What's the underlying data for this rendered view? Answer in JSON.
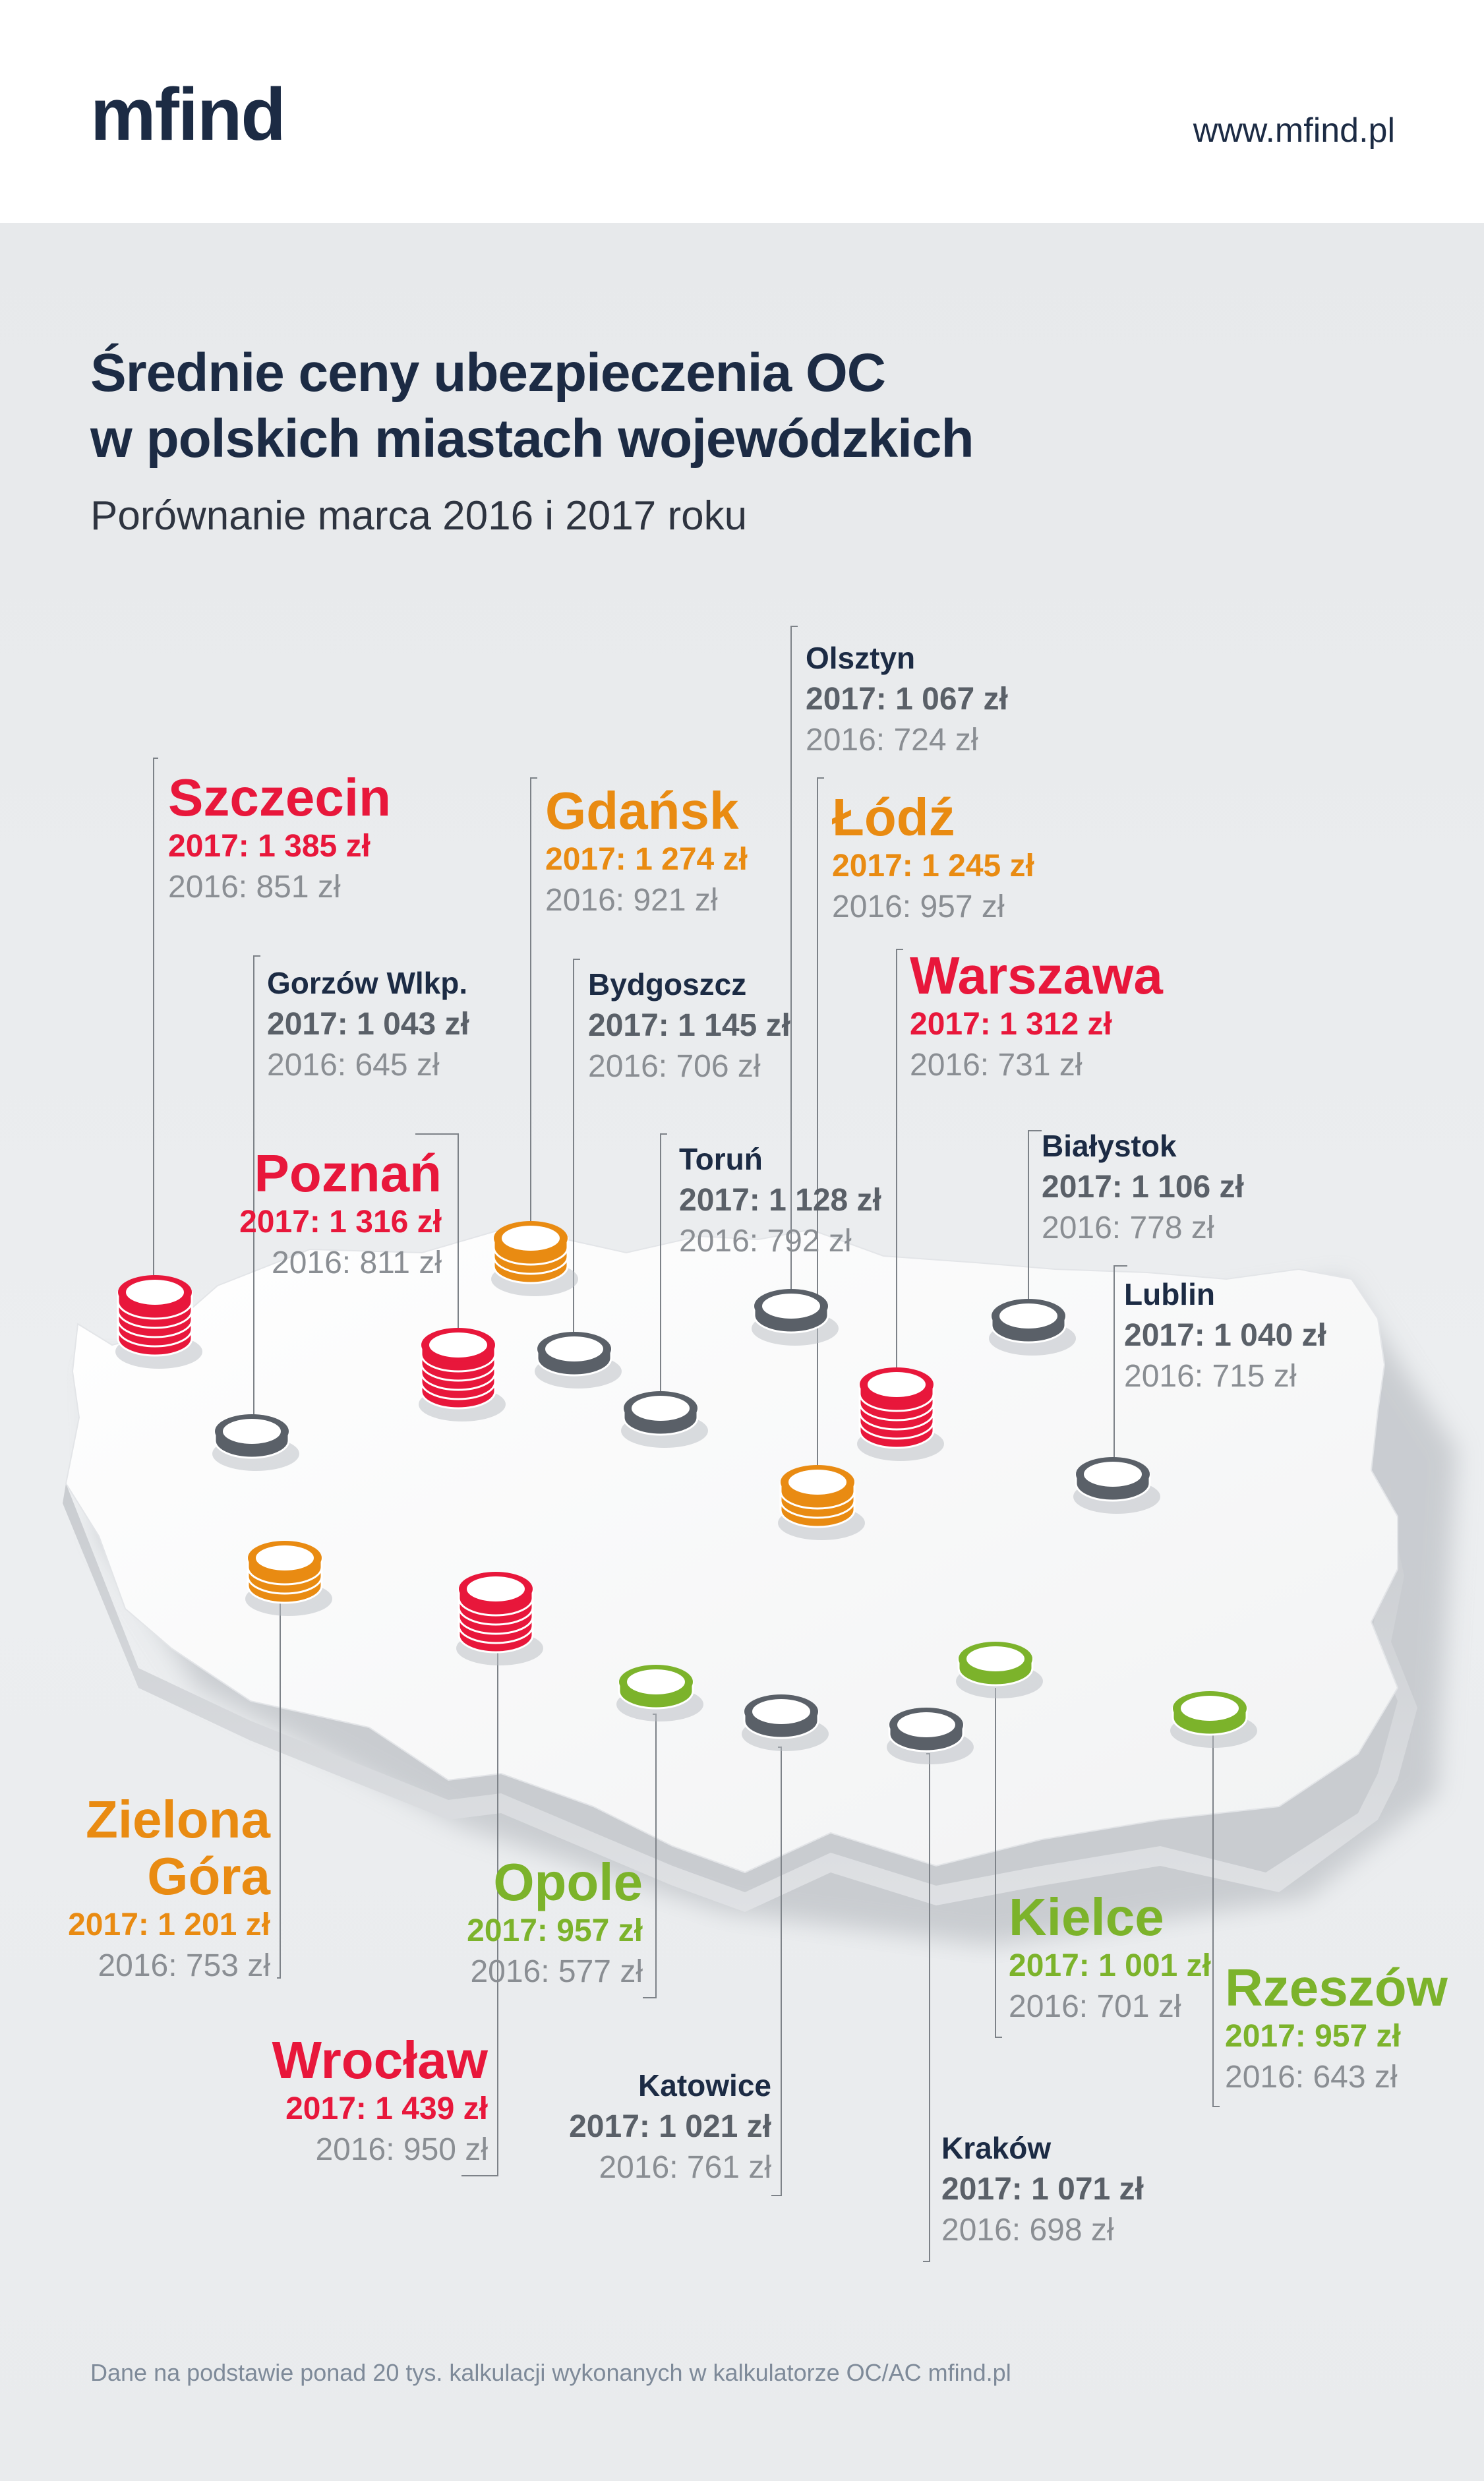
{
  "header": {
    "logo": "mfind",
    "url": "www.mfind.pl"
  },
  "title_line1": "Średnie ceny ubezpieczenia OC",
  "title_line2": "w polskich miastach wojewódzkich",
  "subtitle": "Porównanie marca 2016 i 2017 roku",
  "footer": "Dane na podstawie ponad 20 tys. kalkulacji wykonanych w kalkulatorze OC/AC mfind.pl",
  "colors": {
    "red": "#e8173b",
    "orange": "#e98b12",
    "green": "#7cb32b",
    "gray": "#5a6068",
    "navy": "#1c2b44"
  },
  "cities": [
    {
      "name": "Szczecin",
      "v2017": "2017: 1 385 zł",
      "v2016": "2016: 851 zł",
      "tier": "red"
    },
    {
      "name": "Gorzów Wlkp.",
      "v2017": "2017: 1 043 zł",
      "v2016": "2016: 645 zł",
      "tier": "gray"
    },
    {
      "name": "Gdańsk",
      "v2017": "2017: 1 274 zł",
      "v2016": "2016: 921 zł",
      "tier": "orange"
    },
    {
      "name": "Bydgoszcz",
      "v2017": "2017: 1 145 zł",
      "v2016": "2016: 706 zł",
      "tier": "gray"
    },
    {
      "name": "Olsztyn",
      "v2017": "2017: 1 067 zł",
      "v2016": "2016: 724 zł",
      "tier": "gray"
    },
    {
      "name": "Łódź",
      "v2017": "2017: 1 245 zł",
      "v2016": "2016: 957 zł",
      "tier": "orange"
    },
    {
      "name": "Warszawa",
      "v2017": "2017: 1 312 zł",
      "v2016": "2016: 731 zł",
      "tier": "red"
    },
    {
      "name": "Poznań",
      "v2017": "2017: 1 316 zł",
      "v2016": "2016: 811 zł",
      "tier": "red"
    },
    {
      "name": "Toruń",
      "v2017": "2017: 1 128 zł",
      "v2016": "2016: 792 zł",
      "tier": "gray"
    },
    {
      "name": "Białystok",
      "v2017": "2017: 1 106 zł",
      "v2016": "2016: 778 zł",
      "tier": "gray"
    },
    {
      "name": "Lublin",
      "v2017": "2017: 1 040 zł",
      "v2016": "2016: 715 zł",
      "tier": "gray"
    },
    {
      "name_line1": "Zielona",
      "name_line2": "Góra",
      "v2017": "2017: 1 201 zł",
      "v2016": "2016: 753 zł",
      "tier": "orange"
    },
    {
      "name": "Opole",
      "v2017": "2017: 957 zł",
      "v2016": "2016: 577 zł",
      "tier": "green"
    },
    {
      "name": "Wrocław",
      "v2017": "2017: 1 439 zł",
      "v2016": "2016: 950 zł",
      "tier": "red"
    },
    {
      "name": "Katowice",
      "v2017": "2017: 1 021 zł",
      "v2016": "2016: 761 zł",
      "tier": "gray"
    },
    {
      "name": "Kielce",
      "v2017": "2017: 1 001 zł",
      "v2016": "2016: 701 zł",
      "tier": "green"
    },
    {
      "name": "Kraków",
      "v2017": "2017: 1 071 zł",
      "v2016": "2016: 698 zł",
      "tier": "gray"
    },
    {
      "name": "Rzeszów",
      "v2017": "2017: 957 zł",
      "v2016": "2016: 643 zł",
      "tier": "green"
    }
  ]
}
